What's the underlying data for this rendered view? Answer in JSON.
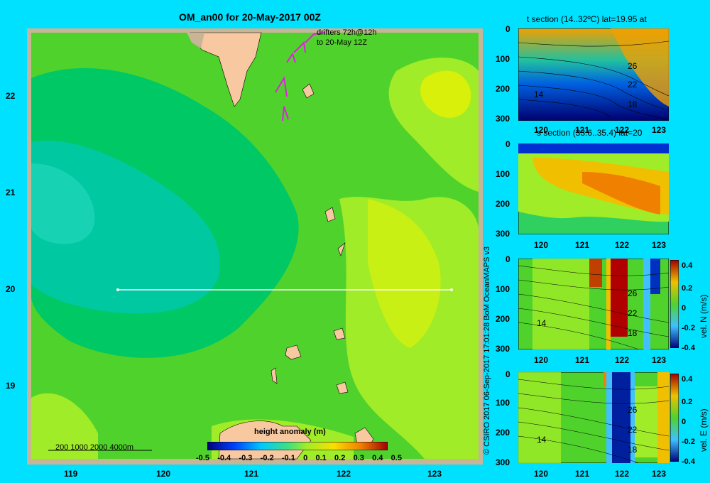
{
  "map": {
    "title": "OM_an00 for 20-May-2017 00Z",
    "drifters_line1": "drifters 72h@12h",
    "drifters_line2": "to 20-May 12Z",
    "lat_ticks": [
      "22",
      "21",
      "20",
      "19"
    ],
    "lon_ticks": [
      "119",
      "120",
      "121",
      "122",
      "123"
    ],
    "scale_text": "200  1000  2000  4000m",
    "colorbar": {
      "title": "height anomaly  (m)",
      "labels": [
        "-0.5",
        "-0.4",
        "-0.3",
        "-0.2",
        "-0.1",
        "0",
        "0.1",
        "0.2",
        "0.3",
        "0.4",
        "0.5"
      ]
    },
    "colors": {
      "background": "#00e0ff",
      "land": "#f8c8a0",
      "frame": "#c8b496",
      "drifter": "#e020e0"
    }
  },
  "credit": "© CSIRO 2017   06-Sep-2017 17:01:28 BoM OceanMAPS v3",
  "panels": [
    {
      "title": "t section (14..32ºC) lat=19.95 at",
      "contours": [
        "26",
        "22",
        "18",
        "14"
      ],
      "cbar_title": ""
    },
    {
      "title": "s section (33.6..35.4) lat=20",
      "contours": [],
      "cbar_title": ""
    },
    {
      "title": "",
      "contours": [
        "26",
        "22",
        "18",
        "14"
      ],
      "cbar_title": "vel. N  (m/s)",
      "cbar_labels": [
        "0.4",
        "0.2",
        "0",
        "-0.2",
        "-0.4"
      ]
    },
    {
      "title": "",
      "contours": [
        "26",
        "22",
        "18",
        "14"
      ],
      "cbar_title": "vel. E  (m/s)",
      "cbar_labels": [
        "0.4",
        "0.2",
        "0",
        "-0.2",
        "-0.4"
      ]
    }
  ],
  "depth_ticks": [
    "0",
    "100",
    "200",
    "300"
  ],
  "section_lon_ticks": [
    "120",
    "121",
    "122",
    "123"
  ]
}
